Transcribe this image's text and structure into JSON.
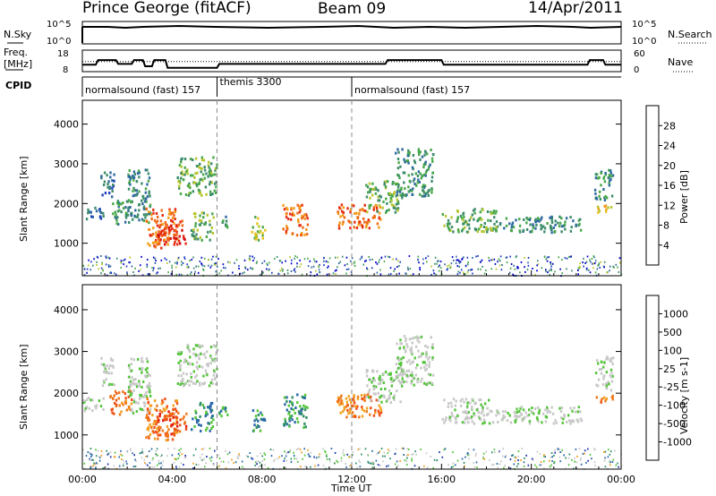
{
  "header": {
    "station": "Prince George (fitACF)",
    "beam": "Beam 09",
    "date": "14/Apr/2011"
  },
  "top_panels": {
    "nsky_label": "N.Sky",
    "nsearch_label": "N.Search",
    "nsky_ticks": [
      "10^5",
      "10^0"
    ],
    "nsearch_ticks": [
      "10^5",
      "10^0"
    ],
    "freq_label_1": "Freq.",
    "freq_label_2": "[MHz]",
    "freq_ticks": [
      "18",
      "8"
    ],
    "nave_label": "Nave",
    "nave_ticks": [
      "60",
      "0"
    ],
    "cpid_label": "CPID",
    "cpid_segments": [
      {
        "label": "normalsound (fast) 157",
        "start_h": 0.0,
        "end_h": 6.0
      },
      {
        "label": "themis 3300",
        "start_h": 6.0,
        "end_h": 12.0
      },
      {
        "label": "normalsound (fast) 157",
        "start_h": 12.0,
        "end_h": 24.0
      }
    ],
    "freq_trace_mhz": [
      [
        0.0,
        10.5
      ],
      [
        0.6,
        10.5
      ],
      [
        0.7,
        13.5
      ],
      [
        1.5,
        13.5
      ],
      [
        1.6,
        11
      ],
      [
        2.2,
        11
      ],
      [
        2.3,
        13.5
      ],
      [
        2.7,
        13.5
      ],
      [
        2.8,
        9.5
      ],
      [
        3.1,
        9.5
      ],
      [
        3.2,
        13.5
      ],
      [
        3.7,
        13.5
      ],
      [
        3.8,
        8.5
      ],
      [
        6.0,
        8.5
      ],
      [
        6.1,
        11
      ],
      [
        13.5,
        11
      ],
      [
        13.6,
        13.5
      ],
      [
        16.0,
        13.5
      ],
      [
        16.1,
        10.5
      ],
      [
        22.5,
        10.5
      ],
      [
        22.6,
        13.5
      ],
      [
        23.2,
        13.5
      ],
      [
        23.3,
        10.5
      ],
      [
        24.0,
        10.5
      ]
    ],
    "nave_dotted_level": 28
  },
  "chart_data": [
    {
      "type": "heatmap",
      "name": "power-panel",
      "ylabel": "Slant Range [km]",
      "xlim_h": [
        0,
        24
      ],
      "ylim_km": [
        180,
        4600
      ],
      "yticks": [
        "1000",
        "2000",
        "3000",
        "4000"
      ],
      "colorbar_label": "Power [dB]",
      "colorbar_ticks": [
        "28",
        "24",
        "20",
        "16",
        "12",
        "8",
        "4"
      ],
      "colorbar_colors": [
        "#0000cc",
        "#1f3fbf",
        "#2f6aa0",
        "#3c8c6a",
        "#48a84a",
        "#b6c52c",
        "#e7c21f",
        "#f29b17",
        "#f06613",
        "#e62b12",
        "#d40b0b"
      ],
      "scatter_regions": [
        {
          "h": [
            0.0,
            0.9
          ],
          "km": [
            1600,
            1950
          ],
          "c": 2
        },
        {
          "h": [
            0.8,
            1.4
          ],
          "km": [
            2200,
            2900
          ],
          "c": 2
        },
        {
          "h": [
            1.2,
            2.2
          ],
          "km": [
            1500,
            2100
          ],
          "c": 3
        },
        {
          "h": [
            2.0,
            3.0
          ],
          "km": [
            1500,
            2900
          ],
          "c": 3
        },
        {
          "h": [
            2.8,
            4.2
          ],
          "km": [
            900,
            1900
          ],
          "c": 8
        },
        {
          "h": [
            3.3,
            4.6
          ],
          "km": [
            1000,
            1600
          ],
          "c": 9
        },
        {
          "h": [
            4.2,
            6.0
          ],
          "km": [
            2200,
            3200
          ],
          "c": 4
        },
        {
          "h": [
            4.8,
            5.8
          ],
          "km": [
            1100,
            1800
          ],
          "c": 4
        },
        {
          "h": [
            6.0,
            6.5
          ],
          "km": [
            1400,
            1700
          ],
          "c": 3
        },
        {
          "h": [
            7.5,
            8.1
          ],
          "km": [
            1100,
            1700
          ],
          "c": 5
        },
        {
          "h": [
            8.9,
            10.0
          ],
          "km": [
            1200,
            2000
          ],
          "c": 8
        },
        {
          "h": [
            11.3,
            13.3
          ],
          "km": [
            1400,
            2000
          ],
          "c": 8
        },
        {
          "h": [
            12.6,
            14.2
          ],
          "km": [
            1800,
            2600
          ],
          "c": 4
        },
        {
          "h": [
            13.9,
            15.6
          ],
          "km": [
            2200,
            3400
          ],
          "c": 3
        },
        {
          "h": [
            16.0,
            18.5
          ],
          "km": [
            1300,
            1900
          ],
          "c": 4
        },
        {
          "h": [
            18.5,
            22.2
          ],
          "km": [
            1300,
            1700
          ],
          "c": 3
        },
        {
          "h": [
            22.8,
            23.6
          ],
          "km": [
            2100,
            2900
          ],
          "c": 3
        },
        {
          "h": [
            22.8,
            23.6
          ],
          "km": [
            1800,
            2000
          ],
          "c": 6
        }
      ],
      "ground_band": {
        "km": [
          200,
          700
        ],
        "c": 2
      }
    },
    {
      "type": "heatmap",
      "name": "velocity-panel",
      "ylabel": "Slant Range [km]",
      "xlabel": "Time UT",
      "xlim_h": [
        0,
        24
      ],
      "ylim_km": [
        180,
        4600
      ],
      "xticks": [
        "00:00",
        "04:00",
        "08:00",
        "12:00",
        "16:00",
        "20:00",
        "00:00"
      ],
      "yticks": [
        "1000",
        "2000",
        "3000",
        "4000"
      ],
      "colorbar_label": "Velocity [m s-1]",
      "colorbar_ticks": [
        "1000",
        "500",
        "100",
        "25",
        "-25",
        "-100",
        "-500",
        "-1000"
      ],
      "colorbar_colors": [
        "#1c2fb4",
        "#2a68a8",
        "#2f8f66",
        "#54c43a",
        "#c8c8c8",
        "#c8c8c8",
        "#f2a01e",
        "#f0781a",
        "#ee5015",
        "#e51c12"
      ],
      "scatter_regions": [
        {
          "h": [
            0.0,
            0.9
          ],
          "km": [
            1600,
            1950
          ],
          "c": 4
        },
        {
          "h": [
            0.8,
            1.4
          ],
          "km": [
            2200,
            2900
          ],
          "c": 4
        },
        {
          "h": [
            1.2,
            2.2
          ],
          "km": [
            1500,
            2100
          ],
          "c": 7
        },
        {
          "h": [
            2.0,
            3.0
          ],
          "km": [
            1500,
            2900
          ],
          "c": 4
        },
        {
          "h": [
            2.8,
            4.2
          ],
          "km": [
            900,
            1900
          ],
          "c": 7
        },
        {
          "h": [
            3.3,
            4.6
          ],
          "km": [
            1000,
            1600
          ],
          "c": 8
        },
        {
          "h": [
            4.2,
            6.0
          ],
          "km": [
            2200,
            3200
          ],
          "c": 4
        },
        {
          "h": [
            4.8,
            5.8
          ],
          "km": [
            1100,
            1800
          ],
          "c": 2
        },
        {
          "h": [
            6.0,
            6.5
          ],
          "km": [
            1400,
            1700
          ],
          "c": 2
        },
        {
          "h": [
            7.5,
            8.1
          ],
          "km": [
            1100,
            1700
          ],
          "c": 2
        },
        {
          "h": [
            8.9,
            10.0
          ],
          "km": [
            1200,
            2000
          ],
          "c": 2
        },
        {
          "h": [
            11.3,
            13.3
          ],
          "km": [
            1400,
            2000
          ],
          "c": 7
        },
        {
          "h": [
            12.6,
            14.2
          ],
          "km": [
            1800,
            2600
          ],
          "c": 4
        },
        {
          "h": [
            13.9,
            15.6
          ],
          "km": [
            2200,
            3400
          ],
          "c": 4
        },
        {
          "h": [
            16.0,
            18.5
          ],
          "km": [
            1300,
            1900
          ],
          "c": 4
        },
        {
          "h": [
            18.5,
            22.2
          ],
          "km": [
            1300,
            1700
          ],
          "c": 4
        },
        {
          "h": [
            22.8,
            23.6
          ],
          "km": [
            2100,
            2900
          ],
          "c": 4
        },
        {
          "h": [
            22.8,
            23.6
          ],
          "km": [
            1800,
            2000
          ],
          "c": 7
        }
      ],
      "ground_band": {
        "km": [
          200,
          700
        ],
        "c": 3
      }
    }
  ]
}
